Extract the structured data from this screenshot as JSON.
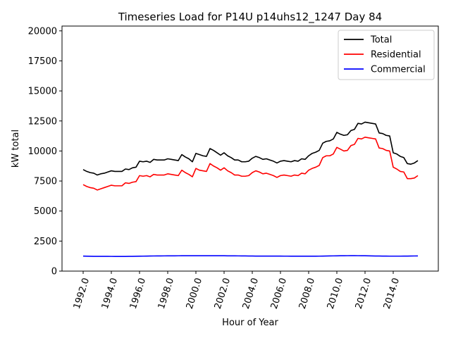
{
  "chart_data": {
    "type": "line",
    "title": "Timeseries Load for P14U p14uhs12_1247  Day 84",
    "xlabel": "Hour of Year",
    "ylabel": "kW total",
    "xlim": [
      1990.5,
      2017.2
    ],
    "ylim": [
      0,
      20400
    ],
    "xticks": [
      1992,
      1994,
      1996,
      1998,
      2000,
      2002,
      2004,
      2006,
      2008,
      2010,
      2012,
      2014
    ],
    "xtick_labels": [
      "1992.0",
      "1994.0",
      "1996.0",
      "1998.0",
      "2000.0",
      "2002.0",
      "2004.0",
      "2006.0",
      "2008.0",
      "2010.0",
      "2012.0",
      "2014.0"
    ],
    "yticks": [
      0,
      2500,
      5000,
      7500,
      10000,
      12500,
      15000,
      17500,
      20000
    ],
    "ytick_labels": [
      "0",
      "2500",
      "5000",
      "7500",
      "10000",
      "12500",
      "15000",
      "17500",
      "20000"
    ],
    "legend_position": "top-right",
    "x": [
      1992.0,
      1992.25,
      1992.5,
      1992.75,
      1993.0,
      1993.25,
      1993.5,
      1993.75,
      1994.0,
      1994.25,
      1994.5,
      1994.75,
      1995.0,
      1995.25,
      1995.5,
      1995.75,
      1996.0,
      1996.25,
      1996.5,
      1996.75,
      1997.0,
      1997.25,
      1997.5,
      1997.75,
      1998.0,
      1998.25,
      1998.5,
      1998.75,
      1999.0,
      1999.25,
      1999.5,
      1999.75,
      2000.0,
      2000.25,
      2000.5,
      2000.75,
      2001.0,
      2001.25,
      2001.5,
      2001.75,
      2002.0,
      2002.25,
      2002.5,
      2002.75,
      2003.0,
      2003.25,
      2003.5,
      2003.75,
      2004.0,
      2004.25,
      2004.5,
      2004.75,
      2005.0,
      2005.25,
      2005.5,
      2005.75,
      2006.0,
      2006.25,
      2006.5,
      2006.75,
      2007.0,
      2007.25,
      2007.5,
      2007.75,
      2008.0,
      2008.25,
      2008.5,
      2008.75,
      2009.0,
      2009.25,
      2009.5,
      2009.75,
      2010.0,
      2010.25,
      2010.5,
      2010.75,
      2011.0,
      2011.25,
      2011.5,
      2011.75,
      2012.0,
      2012.25,
      2012.5,
      2012.75,
      2013.0,
      2013.25,
      2013.5,
      2013.75,
      2014.0,
      2014.25,
      2014.5,
      2014.75,
      2015.0,
      2015.25,
      2015.5,
      2015.75
    ],
    "series": [
      {
        "name": "Total",
        "color": "#000000",
        "values": [
          8450,
          8300,
          8200,
          8150,
          8000,
          8100,
          8150,
          8250,
          8350,
          8300,
          8300,
          8300,
          8500,
          8450,
          8600,
          8650,
          9150,
          9100,
          9150,
          9050,
          9300,
          9250,
          9250,
          9250,
          9350,
          9300,
          9250,
          9200,
          9700,
          9500,
          9350,
          9100,
          9800,
          9700,
          9600,
          9550,
          10200,
          10050,
          9850,
          9650,
          9850,
          9600,
          9450,
          9250,
          9250,
          9100,
          9100,
          9150,
          9400,
          9550,
          9450,
          9300,
          9350,
          9250,
          9150,
          9000,
          9150,
          9200,
          9150,
          9100,
          9200,
          9150,
          9350,
          9300,
          9600,
          9800,
          9900,
          10050,
          10650,
          10800,
          10850,
          11000,
          11550,
          11400,
          11300,
          11350,
          11700,
          11800,
          12300,
          12250,
          12400,
          12350,
          12300,
          12250,
          11500,
          11450,
          11300,
          11250,
          9850,
          9750,
          9550,
          9450,
          8950,
          8900,
          9000,
          9200
        ]
      },
      {
        "name": "Residential",
        "color": "#ff0000",
        "values": [
          7200,
          7050,
          6950,
          6900,
          6750,
          6850,
          6950,
          7050,
          7150,
          7100,
          7100,
          7100,
          7350,
          7300,
          7400,
          7450,
          7950,
          7900,
          7950,
          7850,
          8050,
          8000,
          8000,
          8000,
          8100,
          8050,
          8000,
          7950,
          8400,
          8200,
          8050,
          7850,
          8550,
          8400,
          8350,
          8300,
          8950,
          8750,
          8600,
          8400,
          8600,
          8350,
          8200,
          8000,
          8000,
          7900,
          7900,
          7950,
          8200,
          8350,
          8250,
          8100,
          8150,
          8050,
          7950,
          7800,
          7950,
          8000,
          7950,
          7900,
          8000,
          7950,
          8150,
          8100,
          8400,
          8550,
          8650,
          8800,
          9450,
          9600,
          9600,
          9750,
          10300,
          10150,
          10000,
          10050,
          10450,
          10550,
          11050,
          11000,
          11150,
          11100,
          11050,
          11000,
          10250,
          10200,
          10050,
          10000,
          8650,
          8500,
          8300,
          8250,
          7700,
          7700,
          7750,
          7950
        ]
      },
      {
        "name": "Commercial",
        "color": "#0000ff",
        "values": [
          1250,
          1240,
          1235,
          1230,
          1230,
          1228,
          1226,
          1225,
          1224,
          1222,
          1220,
          1220,
          1222,
          1225,
          1228,
          1232,
          1240,
          1245,
          1250,
          1255,
          1260,
          1262,
          1265,
          1268,
          1270,
          1272,
          1274,
          1275,
          1276,
          1277,
          1278,
          1279,
          1280,
          1281,
          1281,
          1280,
          1280,
          1279,
          1278,
          1277,
          1276,
          1274,
          1272,
          1270,
          1268,
          1265,
          1262,
          1258,
          1255,
          1252,
          1250,
          1250,
          1250,
          1249,
          1248,
          1248,
          1247,
          1246,
          1245,
          1244,
          1243,
          1242,
          1241,
          1240,
          1240,
          1241,
          1243,
          1246,
          1250,
          1256,
          1262,
          1268,
          1274,
          1278,
          1280,
          1282,
          1283,
          1283,
          1282,
          1280,
          1276,
          1270,
          1264,
          1258,
          1254,
          1250,
          1248,
          1246,
          1245,
          1245,
          1246,
          1248,
          1252,
          1256,
          1260,
          1265
        ]
      }
    ]
  }
}
